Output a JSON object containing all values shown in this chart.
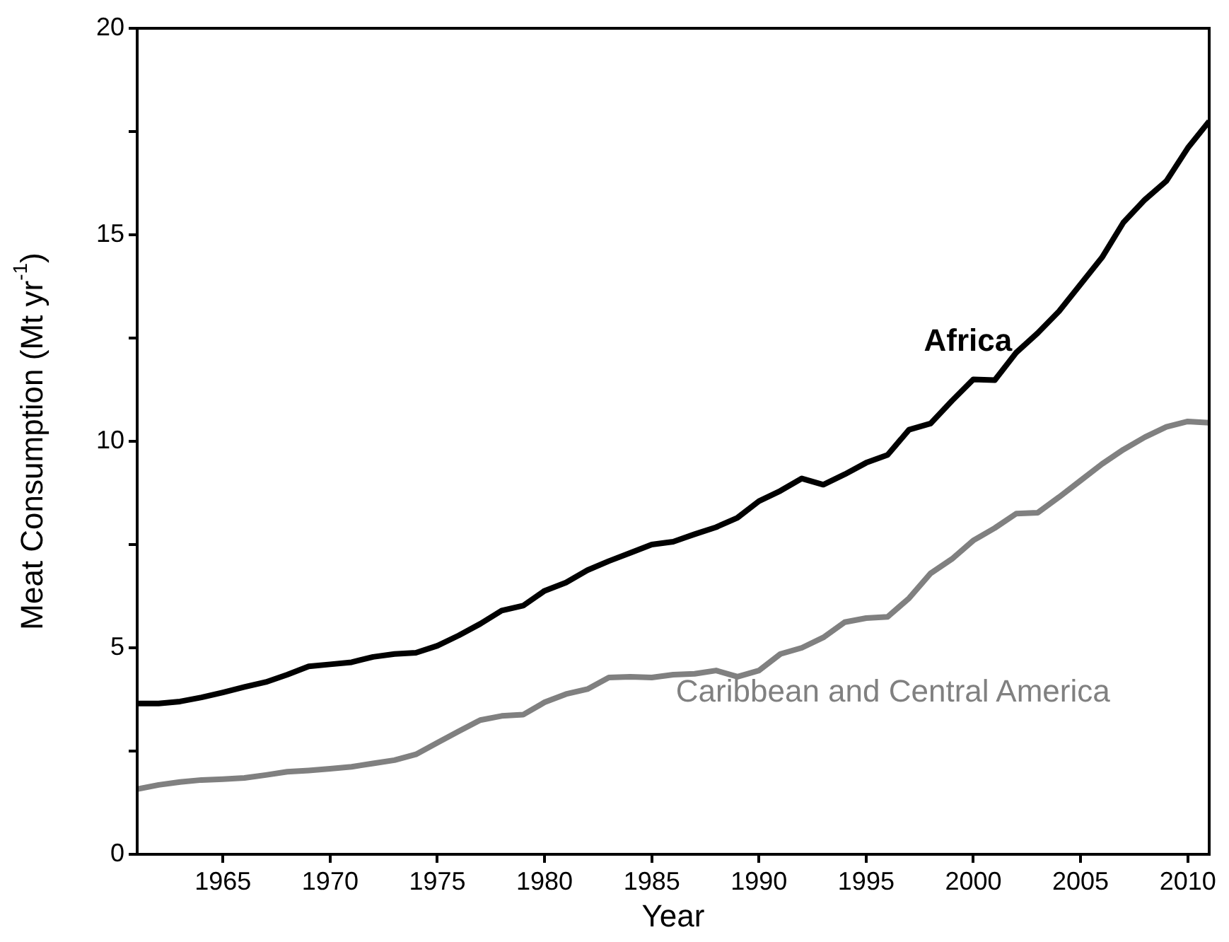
{
  "chart_data": {
    "type": "line",
    "xlabel": "Year",
    "ylabel": "Meat Consumption (Mt yr$^{-1}$)",
    "x": [
      1961,
      1962,
      1963,
      1964,
      1965,
      1966,
      1967,
      1968,
      1969,
      1970,
      1971,
      1972,
      1973,
      1974,
      1975,
      1976,
      1977,
      1978,
      1979,
      1980,
      1981,
      1982,
      1983,
      1984,
      1985,
      1986,
      1987,
      1988,
      1989,
      1990,
      1991,
      1992,
      1993,
      1994,
      1995,
      1996,
      1997,
      1998,
      1999,
      2000,
      2001,
      2002,
      2003,
      2004,
      2005,
      2006,
      2007,
      2008,
      2009,
      2010,
      2011
    ],
    "series": [
      {
        "name": "Africa",
        "color": "#000000",
        "values": [
          3.65,
          3.65,
          3.7,
          3.8,
          3.92,
          4.05,
          4.17,
          4.35,
          4.55,
          4.6,
          4.65,
          4.78,
          4.85,
          4.88,
          5.05,
          5.3,
          5.58,
          5.9,
          6.02,
          6.38,
          6.58,
          6.88,
          7.1,
          7.3,
          7.5,
          7.57,
          7.75,
          7.92,
          8.15,
          8.55,
          8.8,
          9.1,
          8.95,
          9.2,
          9.48,
          9.67,
          10.28,
          10.43,
          10.98,
          11.5,
          11.48,
          12.15,
          12.62,
          13.15,
          13.8,
          14.45,
          15.3,
          15.85,
          16.3,
          17.1,
          17.75
        ]
      },
      {
        "name": "Caribbean and Central America",
        "color": "#808080",
        "values": [
          1.58,
          1.68,
          1.75,
          1.8,
          1.82,
          1.85,
          1.92,
          2.0,
          2.03,
          2.07,
          2.12,
          2.2,
          2.28,
          2.42,
          2.7,
          2.98,
          3.25,
          3.35,
          3.38,
          3.68,
          3.88,
          4.0,
          4.28,
          4.3,
          4.28,
          4.35,
          4.37,
          4.45,
          4.3,
          4.45,
          4.85,
          5.0,
          5.25,
          5.62,
          5.72,
          5.75,
          6.2,
          6.8,
          7.15,
          7.6,
          7.9,
          8.25,
          8.27,
          8.65,
          9.05,
          9.45,
          9.8,
          10.1,
          10.35,
          10.48,
          10.45
        ]
      }
    ],
    "xlim": [
      1961,
      2011
    ],
    "xticks": [
      1965,
      1970,
      1975,
      1980,
      1985,
      1990,
      1995,
      2000,
      2005,
      2010
    ],
    "ylim": [
      0,
      20
    ],
    "yticks": [
      0,
      {
        "value": 2.5,
        "label": null
      },
      5,
      {
        "value": 7.5,
        "label": null
      },
      10,
      {
        "value": 12.5,
        "label": null
      },
      15,
      {
        "value": 17.5,
        "label": null
      },
      20
    ],
    "grid": false,
    "legend": false,
    "marker": "none",
    "line_style": "solid"
  }
}
